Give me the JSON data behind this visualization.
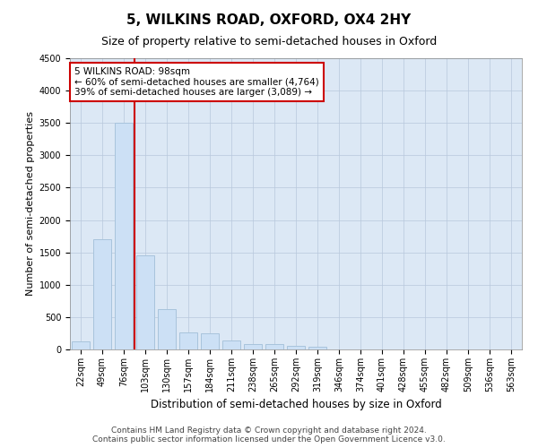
{
  "title": "5, WILKINS ROAD, OXFORD, OX4 2HY",
  "subtitle": "Size of property relative to semi-detached houses in Oxford",
  "xlabel": "Distribution of semi-detached houses by size in Oxford",
  "ylabel": "Number of semi-detached properties",
  "categories": [
    "22sqm",
    "49sqm",
    "76sqm",
    "103sqm",
    "130sqm",
    "157sqm",
    "184sqm",
    "211sqm",
    "238sqm",
    "265sqm",
    "292sqm",
    "319sqm",
    "346sqm",
    "374sqm",
    "401sqm",
    "428sqm",
    "455sqm",
    "482sqm",
    "509sqm",
    "536sqm",
    "563sqm"
  ],
  "values": [
    120,
    1700,
    3500,
    1450,
    620,
    270,
    255,
    140,
    90,
    80,
    55,
    40,
    0,
    0,
    0,
    0,
    0,
    0,
    0,
    0,
    0
  ],
  "bar_color": "#cce0f5",
  "bar_edge_color": "#a8c4dc",
  "vline_color": "#cc0000",
  "vline_bin_index": 2,
  "annotation_text": "5 WILKINS ROAD: 98sqm\n← 60% of semi-detached houses are smaller (4,764)\n39% of semi-detached houses are larger (3,089) →",
  "annotation_box_color": "#ffffff",
  "annotation_box_edge": "#cc0000",
  "ylim": [
    0,
    4500
  ],
  "yticks": [
    0,
    500,
    1000,
    1500,
    2000,
    2500,
    3000,
    3500,
    4000,
    4500
  ],
  "grid_color": "#b8c8dc",
  "background_color": "#dce8f5",
  "footer_line1": "Contains HM Land Registry data © Crown copyright and database right 2024.",
  "footer_line2": "Contains public sector information licensed under the Open Government Licence v3.0.",
  "title_fontsize": 11,
  "subtitle_fontsize": 9,
  "axis_label_fontsize": 8,
  "tick_fontsize": 7,
  "annotation_fontsize": 7.5,
  "footer_fontsize": 6.5
}
